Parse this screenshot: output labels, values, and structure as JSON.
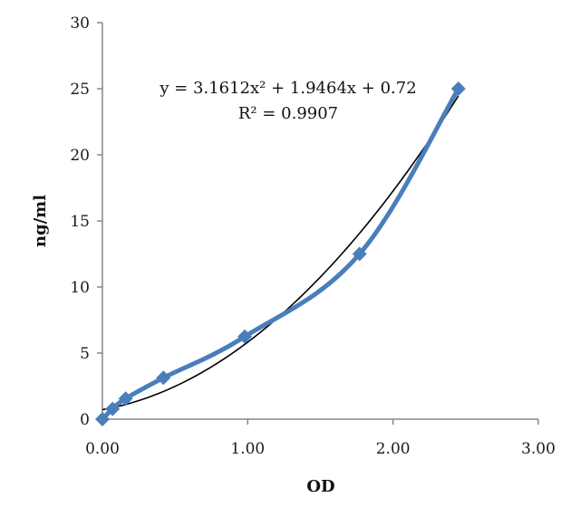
{
  "chart_data": {
    "type": "scatter",
    "xlabel": "OD",
    "ylabel": "ng/ml",
    "xlim": [
      0,
      3
    ],
    "ylim": [
      0,
      30
    ],
    "x_ticks": [
      "0.00",
      "1.00",
      "2.00",
      "3.00"
    ],
    "y_ticks": [
      "0",
      "5",
      "10",
      "15",
      "20",
      "25",
      "30"
    ],
    "grid": false,
    "series": [
      {
        "marker": "diamond",
        "line": "smooth",
        "color": "#4a7ebb",
        "points": [
          {
            "x": 0.0,
            "y": 0.0
          },
          {
            "x": 0.07,
            "y": 0.78
          },
          {
            "x": 0.16,
            "y": 1.56
          },
          {
            "x": 0.42,
            "y": 3.13
          },
          {
            "x": 0.98,
            "y": 6.25
          },
          {
            "x": 1.77,
            "y": 12.5
          },
          {
            "x": 2.45,
            "y": 25.0
          }
        ]
      }
    ],
    "trendline": {
      "type": "polynomial",
      "coefficients": [
        3.1612,
        1.9464,
        0.72
      ],
      "color": "#000000",
      "x_range": [
        0,
        2.45
      ],
      "equation": "y = 3.1612x² + 1.9464x + 0.72",
      "r_squared": "R² = 0.9907"
    }
  }
}
